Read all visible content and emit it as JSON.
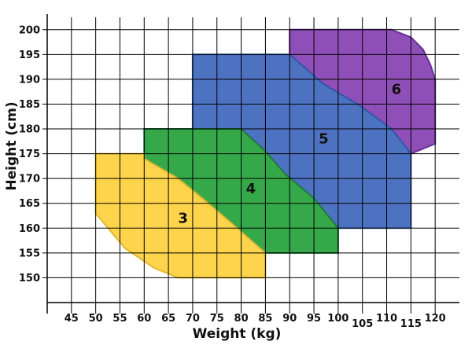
{
  "chart_data": {
    "type": "area",
    "title": "",
    "xlabel": "Weight (kg)",
    "ylabel": "Height (cm)",
    "xlim": [
      40,
      125
    ],
    "ylim": [
      145,
      202.5
    ],
    "x_ticks": [
      "45",
      "50",
      "55",
      "60",
      "65",
      "70",
      "75",
      "80",
      "85",
      "90",
      "95",
      "100",
      "105",
      "110",
      "115",
      "120"
    ],
    "y_ticks": [
      "150",
      "155",
      "160",
      "165",
      "170",
      "175",
      "180",
      "185",
      "190",
      "195",
      "200"
    ],
    "grid": true,
    "zones": [
      {
        "label": "6",
        "color": "#8f4fb8",
        "edge_color": "#6a2f96",
        "polygon": [
          [
            90,
            200
          ],
          [
            111,
            200
          ],
          [
            115,
            198.5
          ],
          [
            117.5,
            196
          ],
          [
            119,
            193
          ],
          [
            120,
            190
          ],
          [
            120,
            177
          ],
          [
            115,
            175
          ],
          [
            111,
            180
          ],
          [
            104,
            185
          ],
          [
            97,
            189
          ],
          [
            90,
            195
          ]
        ]
      },
      {
        "label": "5",
        "color": "#4e72c2",
        "edge_color": "#2b5aa8",
        "polygon": [
          [
            70,
            195
          ],
          [
            90,
            195
          ],
          [
            97,
            189
          ],
          [
            104,
            185
          ],
          [
            111,
            180
          ],
          [
            115,
            175
          ],
          [
            115,
            160
          ],
          [
            100,
            160
          ],
          [
            95,
            166
          ],
          [
            89,
            171
          ],
          [
            85,
            175.5
          ],
          [
            80,
            180
          ],
          [
            70,
            180
          ]
        ]
      },
      {
        "label": "4",
        "color": "#35a84a",
        "edge_color": "#1f7a3a",
        "polygon": [
          [
            60,
            180
          ],
          [
            80,
            180
          ],
          [
            85,
            175.5
          ],
          [
            89,
            171
          ],
          [
            95,
            166
          ],
          [
            100,
            160
          ],
          [
            100,
            155
          ],
          [
            85,
            155
          ],
          [
            78,
            161
          ],
          [
            72,
            166
          ],
          [
            67,
            170
          ],
          [
            60,
            174
          ]
        ]
      },
      {
        "label": "3",
        "color": "#fdd44b",
        "edge_color": "#e0b830",
        "polygon": [
          [
            50,
            175
          ],
          [
            60,
            175
          ],
          [
            60,
            174
          ],
          [
            67,
            170
          ],
          [
            72,
            166
          ],
          [
            78,
            161
          ],
          [
            85,
            155
          ],
          [
            85,
            150
          ],
          [
            67,
            150
          ],
          [
            62,
            152
          ],
          [
            56,
            156
          ],
          [
            50,
            163
          ]
        ]
      }
    ]
  }
}
